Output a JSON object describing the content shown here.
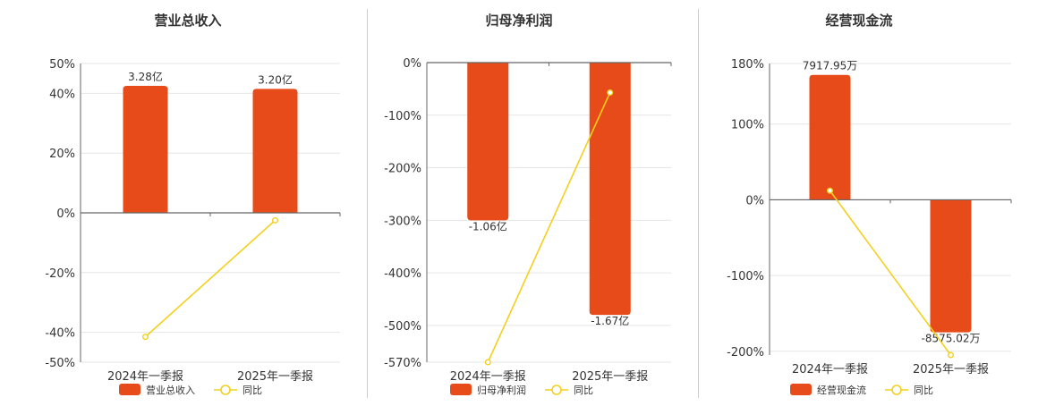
{
  "colors": {
    "bar": "#e84b1a",
    "line": "#f2d01e",
    "grid": "#e6e6e6",
    "axis": "#666666",
    "text": "#333333"
  },
  "chart_data": [
    {
      "type": "bar",
      "title": "营业总收入",
      "categories": [
        "2024年一季报",
        "2025年一季报"
      ],
      "y_axis_format": "percent",
      "ylim": [
        -50,
        50
      ],
      "yticks": [
        50,
        40,
        20,
        0,
        -20,
        -40,
        -50
      ],
      "grid": true,
      "legend_position": "bottom",
      "series": [
        {
          "name": "营业总收入",
          "type": "bar",
          "values": [
            42.5,
            41.5
          ],
          "labels": [
            "3.28亿",
            "3.20亿"
          ]
        },
        {
          "name": "同比",
          "type": "line",
          "values": [
            -41.5,
            -2.5
          ]
        }
      ]
    },
    {
      "type": "bar",
      "title": "归母净利润",
      "categories": [
        "2024年一季报",
        "2025年一季报"
      ],
      "y_axis_format": "percent",
      "ylim": [
        -570,
        0
      ],
      "yticks": [
        0,
        -100,
        -200,
        -300,
        -400,
        -500,
        -570
      ],
      "grid": true,
      "legend_position": "bottom",
      "series": [
        {
          "name": "归母净利润",
          "type": "bar",
          "values": [
            -300,
            -480
          ],
          "labels": [
            "-1.06亿",
            "-1.67亿"
          ]
        },
        {
          "name": "同比",
          "type": "line",
          "values": [
            -570,
            -57
          ]
        }
      ]
    },
    {
      "type": "bar",
      "title": "经营现金流",
      "categories": [
        "2024年一季报",
        "2025年一季报"
      ],
      "y_axis_format": "percent",
      "ylim": [
        -205,
        180
      ],
      "yticks": [
        180,
        100,
        0,
        -100,
        -200
      ],
      "grid": true,
      "legend_position": "bottom",
      "series": [
        {
          "name": "经营现金流",
          "type": "bar",
          "values": [
            165,
            -175
          ],
          "labels": [
            "7917.95万",
            "-8575.02万"
          ]
        },
        {
          "name": "同比",
          "type": "line",
          "values": [
            12,
            -205
          ]
        }
      ]
    }
  ]
}
